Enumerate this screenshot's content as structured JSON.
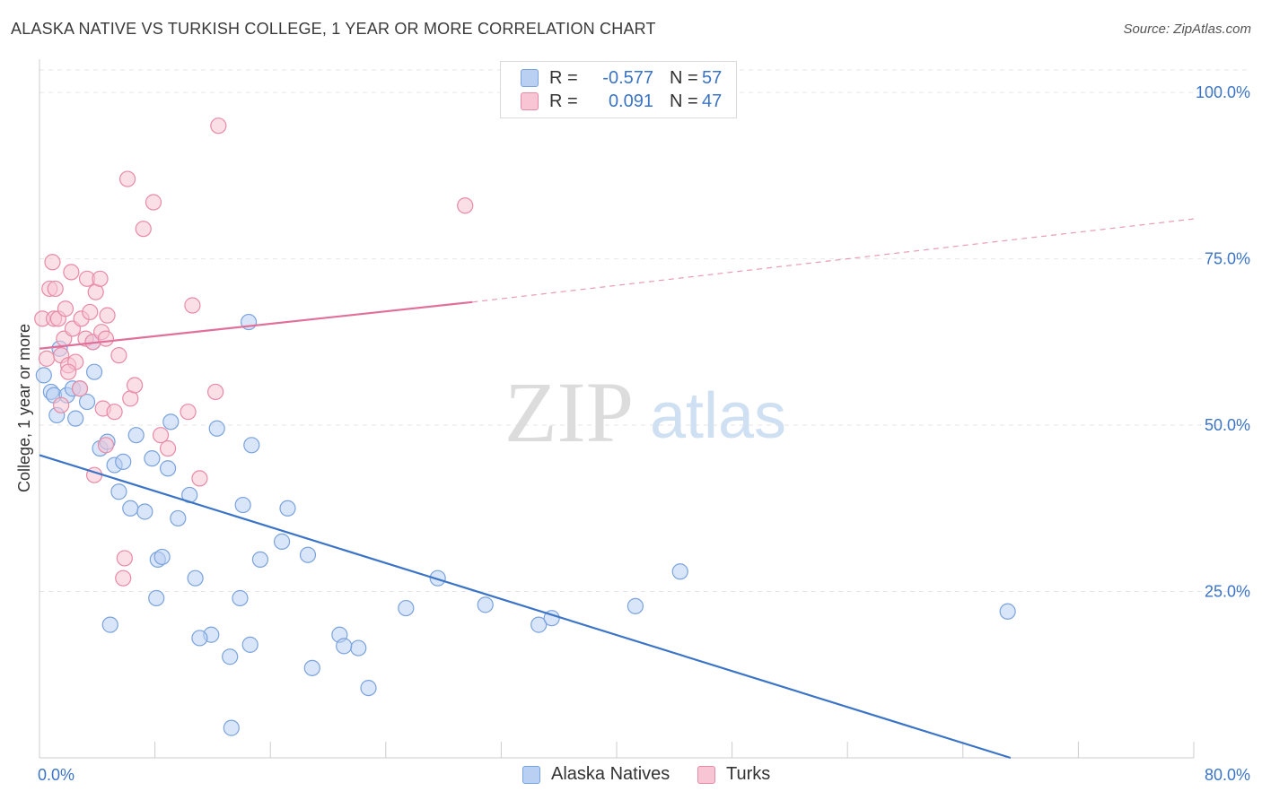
{
  "title": "ALASKA NATIVE VS TURKISH COLLEGE, 1 YEAR OR MORE CORRELATION CHART",
  "source": "Source: ZipAtlas.com",
  "watermark": {
    "zip": "ZIP",
    "atlas": "atlas"
  },
  "legend": {
    "rows": [
      {
        "r_label": "R =",
        "r_value": "-0.577",
        "n_label": "N =",
        "n_value": "57",
        "fill": "#b9d0f2",
        "stroke": "#7aa3dd"
      },
      {
        "r_label": "R =",
        "r_value": "0.091",
        "n_label": "N =",
        "n_value": "47",
        "fill": "#f7c5d3",
        "stroke": "#e88aa5"
      }
    ]
  },
  "bottom_legend": [
    {
      "label": "Alaska Natives",
      "fill": "#b9d0f2",
      "stroke": "#7aa3dd"
    },
    {
      "label": "Turks",
      "fill": "#f7c5d3",
      "stroke": "#e88aa5"
    }
  ],
  "chart_data": {
    "type": "scatter",
    "title": "ALASKA NATIVE VS TURKISH COLLEGE, 1 YEAR OR MORE CORRELATION CHART",
    "xlabel": "",
    "ylabel": "College, 1 year or more",
    "xlim": [
      0,
      80
    ],
    "ylim": [
      0,
      105
    ],
    "x_tick_labels": [
      "0.0%",
      "80.0%"
    ],
    "y_ticks": [
      25,
      50,
      75,
      100
    ],
    "y_tick_labels": [
      "25.0%",
      "50.0%",
      "75.0%",
      "100.0%"
    ],
    "grid": true,
    "series": [
      {
        "name": "Alaska Natives",
        "color": "#3b74c6",
        "fill": "#b9d0f2",
        "stroke": "#7aa3dd",
        "points": [
          [
            0.3,
            57.5
          ],
          [
            0.8,
            55
          ],
          [
            1,
            54.5
          ],
          [
            1.2,
            51.5
          ],
          [
            1.4,
            61.5
          ],
          [
            1.9,
            54.5
          ],
          [
            2.3,
            55.5
          ],
          [
            2.5,
            51
          ],
          [
            2.8,
            55.5
          ],
          [
            3.3,
            53.5
          ],
          [
            3.7,
            62.5
          ],
          [
            3.8,
            58
          ],
          [
            4.2,
            46.5
          ],
          [
            4.7,
            47.5
          ],
          [
            5.2,
            44
          ],
          [
            5.8,
            44.5
          ],
          [
            5.5,
            40
          ],
          [
            6.3,
            37.5
          ],
          [
            6.7,
            48.5
          ],
          [
            7.3,
            37
          ],
          [
            7.8,
            45
          ],
          [
            8.2,
            29.8
          ],
          [
            8.5,
            30.2
          ],
          [
            8.9,
            43.5
          ],
          [
            9.1,
            50.5
          ],
          [
            9.6,
            36
          ],
          [
            10.4,
            39.5
          ],
          [
            10.8,
            27
          ],
          [
            11.9,
            18.5
          ],
          [
            12.3,
            49.5
          ],
          [
            14.1,
            38
          ],
          [
            14.5,
            65.5
          ],
          [
            14.7,
            47
          ],
          [
            15.3,
            29.8
          ],
          [
            16.8,
            32.5
          ],
          [
            17.2,
            37.5
          ],
          [
            18.6,
            30.5
          ],
          [
            20.8,
            18.5
          ],
          [
            22.1,
            16.5
          ],
          [
            25.4,
            22.5
          ],
          [
            27.6,
            27
          ],
          [
            30.9,
            23
          ],
          [
            34.6,
            20
          ],
          [
            35.5,
            21
          ],
          [
            41.3,
            22.8
          ],
          [
            44.4,
            28
          ],
          [
            67.1,
            22
          ],
          [
            4.9,
            20
          ],
          [
            8.1,
            24
          ],
          [
            11.1,
            18
          ],
          [
            13.2,
            15.2
          ],
          [
            13.9,
            24
          ],
          [
            14.6,
            17
          ],
          [
            18.9,
            13.5
          ],
          [
            21.1,
            16.8
          ],
          [
            22.8,
            10.5
          ],
          [
            13.3,
            4.5
          ]
        ]
      },
      {
        "name": "Turks",
        "color": "#e0709a",
        "fill": "#f7c5d3",
        "stroke": "#e88aa5",
        "points": [
          [
            0.2,
            66
          ],
          [
            0.5,
            60
          ],
          [
            0.7,
            70.5
          ],
          [
            0.9,
            74.5
          ],
          [
            1,
            66
          ],
          [
            1.1,
            70.5
          ],
          [
            1.3,
            66
          ],
          [
            1.5,
            60.5
          ],
          [
            1.7,
            63
          ],
          [
            1.8,
            67.5
          ],
          [
            2,
            59
          ],
          [
            2.2,
            73
          ],
          [
            2.3,
            64.5
          ],
          [
            2.5,
            59.5
          ],
          [
            2.8,
            55.5
          ],
          [
            2.9,
            66
          ],
          [
            3.2,
            63
          ],
          [
            3.3,
            72
          ],
          [
            3.5,
            67
          ],
          [
            3.7,
            62.5
          ],
          [
            3.9,
            70
          ],
          [
            4.2,
            72
          ],
          [
            4.3,
            64
          ],
          [
            4.4,
            52.5
          ],
          [
            4.6,
            63
          ],
          [
            4.7,
            66.5
          ],
          [
            5.5,
            60.5
          ],
          [
            5.9,
            30
          ],
          [
            5.8,
            27
          ],
          [
            6.1,
            87
          ],
          [
            6.3,
            54
          ],
          [
            6.6,
            56
          ],
          [
            7.2,
            79.5
          ],
          [
            7.9,
            83.5
          ],
          [
            8.4,
            48.5
          ],
          [
            8.9,
            46.5
          ],
          [
            10.3,
            52
          ],
          [
            10.6,
            68
          ],
          [
            11.1,
            42
          ],
          [
            12.2,
            55
          ],
          [
            12.4,
            95
          ],
          [
            29.5,
            83
          ],
          [
            3.8,
            42.5
          ],
          [
            4.6,
            47
          ],
          [
            5.2,
            52
          ],
          [
            1.5,
            53
          ],
          [
            2,
            58
          ]
        ]
      }
    ],
    "trend_lines": [
      {
        "series": "Alaska Natives",
        "solid": [
          [
            0,
            45.5
          ],
          [
            67.3,
            0
          ]
        ]
      },
      {
        "series": "Turks",
        "solid": [
          [
            0,
            61.5
          ],
          [
            30,
            68.5
          ]
        ],
        "dashed": [
          [
            30,
            68.5
          ],
          [
            80,
            81
          ]
        ]
      }
    ]
  }
}
